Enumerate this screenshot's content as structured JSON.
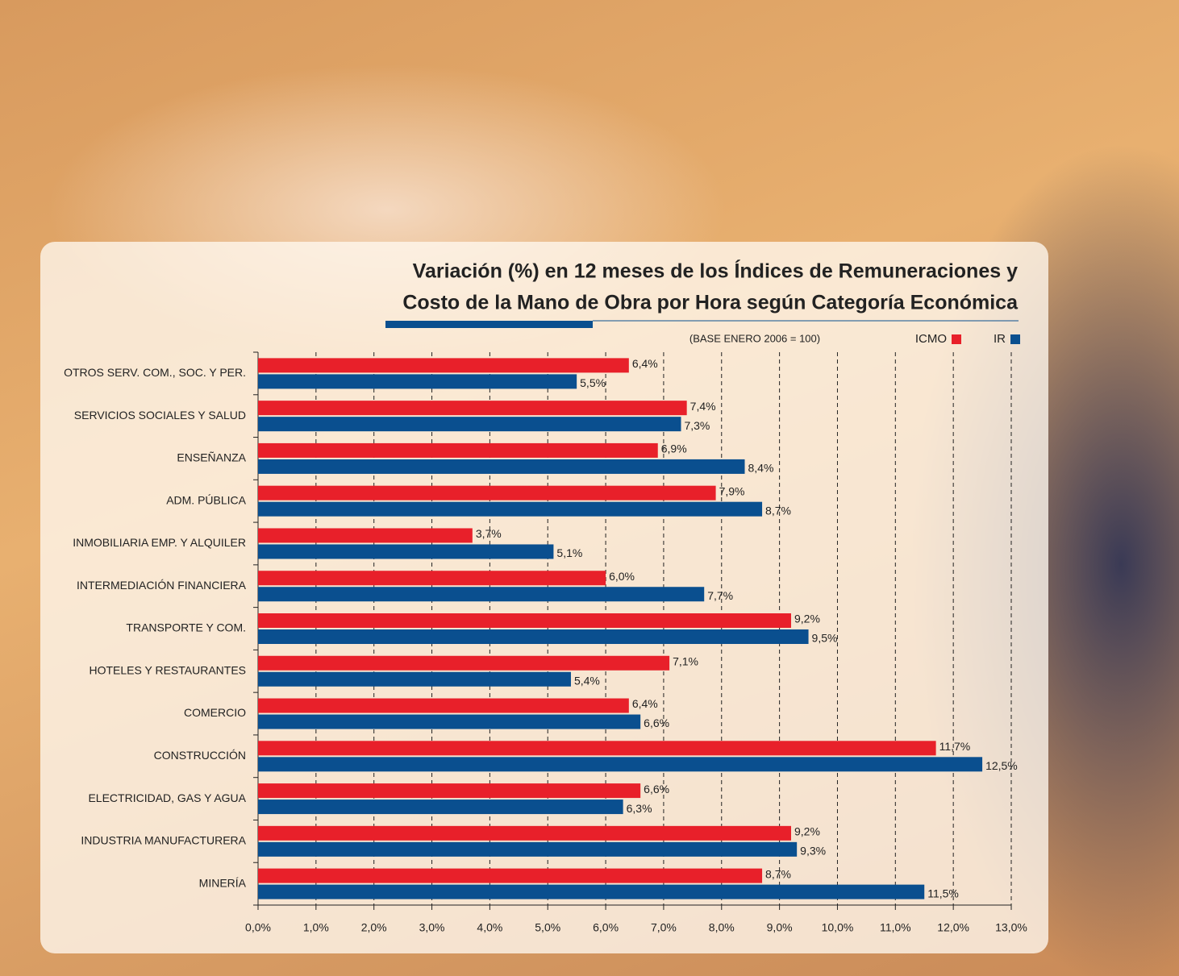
{
  "chart_data": {
    "type": "hbar",
    "title": [
      "Variación (%) en 12 meses de los Índices de Remuneraciones y",
      "Costo de la Mano de Obra por Hora según Categoría Económica"
    ],
    "subtitle": "(BASE ENERO 2006 = 100)",
    "categories": [
      "OTROS SERV. COM., SOC. Y PER.",
      "SERVICIOS SOCIALES Y SALUD",
      "ENSEÑANZA",
      "ADM. PÚBLICA",
      "INMOBILIARIA EMP. Y ALQUILER",
      "INTERMEDIACIÓN FINANCIERA",
      "TRANSPORTE Y COM.",
      "HOTELES Y RESTAURANTES",
      "COMERCIO",
      "CONSTRUCCIÓN",
      "ELECTRICIDAD, GAS Y AGUA",
      "INDUSTRIA MANUFACTURERA",
      "MINERÍA"
    ],
    "series": [
      {
        "name": "ICMO",
        "color": "#e8202a",
        "values": [
          6.4,
          7.4,
          6.9,
          7.9,
          3.7,
          6.0,
          9.2,
          7.1,
          6.4,
          11.7,
          6.6,
          9.2,
          8.7
        ],
        "value_labels": [
          "6,4%",
          "7,4%",
          "6,9%",
          "7,9%",
          "3,7%",
          "6,0%",
          "9,2%",
          "7,1%",
          "6,4%",
          "11,7%",
          "6,6%",
          "9,2%",
          "8,7%"
        ]
      },
      {
        "name": "IR",
        "color": "#0a4f8f",
        "values": [
          5.5,
          7.3,
          8.4,
          8.7,
          5.1,
          7.7,
          9.5,
          5.4,
          6.6,
          12.5,
          6.3,
          9.3,
          11.5
        ],
        "value_labels": [
          "5,5%",
          "7,3%",
          "8,4%",
          "8,7%",
          "5,1%",
          "7,7%",
          "9,5%",
          "5,4%",
          "6,6%",
          "12,5%",
          "6,3%",
          "9,3%",
          "11,5%"
        ]
      }
    ],
    "xlim": [
      0,
      13
    ],
    "xticks": [
      {
        "value": 0,
        "label": "0,0%"
      },
      {
        "value": 1,
        "label": "1,0%"
      },
      {
        "value": 2,
        "label": "2,0%"
      },
      {
        "value": 3,
        "label": "3,0%"
      },
      {
        "value": 4,
        "label": "4,0%"
      },
      {
        "value": 5,
        "label": "5,0%"
      },
      {
        "value": 6,
        "label": "6,0%"
      },
      {
        "value": 7,
        "label": "7,0%"
      },
      {
        "value": 8,
        "label": "8,0%"
      },
      {
        "value": 9,
        "label": "9,0%"
      },
      {
        "value": 10,
        "label": "10,0%"
      },
      {
        "value": 11,
        "label": "11,0%"
      },
      {
        "value": 12,
        "label": "12,0%"
      },
      {
        "value": 13,
        "label": "13,0%"
      }
    ],
    "grid": true,
    "legend": "top-right"
  }
}
